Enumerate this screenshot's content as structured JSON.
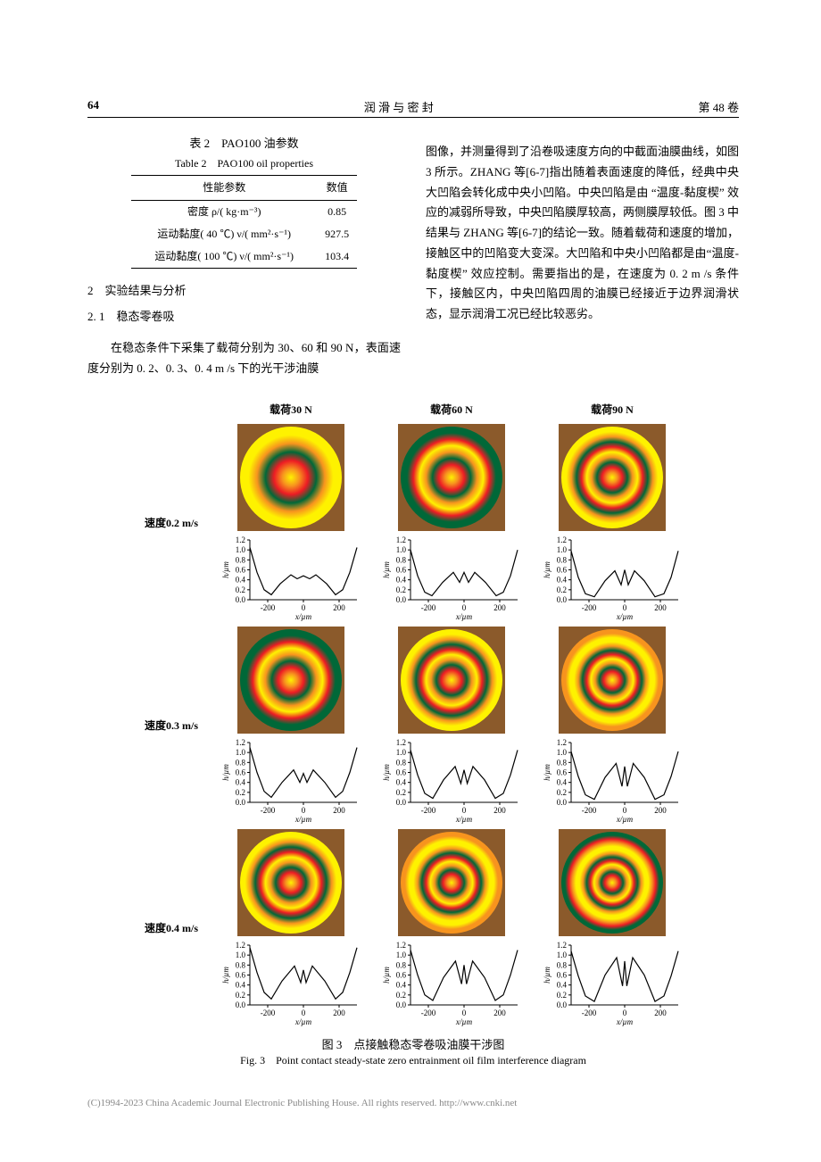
{
  "header": {
    "page_number": "64",
    "journal": "润 滑 与 密 封",
    "volume": "第 48 卷"
  },
  "table2": {
    "caption_cn": "表 2　PAO100 油参数",
    "caption_en": "Table 2　PAO100 oil properties",
    "head_param": "性能参数",
    "head_value": "数值",
    "rows": [
      {
        "param": "密度 ρ/( kg·m⁻³)",
        "value": "0.85"
      },
      {
        "param": "运动黏度( 40 ℃) ν/( mm²·s⁻¹)",
        "value": "927.5"
      },
      {
        "param": "运动黏度( 100 ℃) ν/( mm²·s⁻¹)",
        "value": "103.4"
      }
    ]
  },
  "section2": {
    "title": "2　实验结果与分析",
    "sub1_title": "2. 1　稳态零卷吸",
    "sub1_p1": "在稳态条件下采集了载荷分别为 30、60 和 90 N，表面速度分别为 0. 2、0. 3、0. 4 m /s 下的光干涉油膜图像，并测量得到了沿卷吸速度方向的中截面油膜曲线，如图 3 所示。ZHANG 等[6-7]指出随着表面速度的降低，经典中央大凹陷会转化成中央小凹陷。中央凹陷是由 “温度-黏度楔” 效应的减弱所导致，中央凹陷膜厚较高，两侧膜厚较低。图 3 中结果与 ZHANG 等[6-7]的结论一致。随着载荷和速度的增加，接触区中的凹陷变大变深。大凹陷和中央小凹陷都是由“温度-黏度楔” 效应控制。需要指出的是，在速度为 0. 2 m /s 条件下，接触区内，中央凹陷四周的油膜已经接近于边界润滑状态，显示润滑工况已经比较恶劣。"
  },
  "figure3": {
    "col_heads": [
      "载荷30 N",
      "载荷60 N",
      "载荷90 N"
    ],
    "row_labels": [
      "速度0.2 m/s",
      "速度0.3 m/s",
      "速度0.4 m/s"
    ],
    "ring_colors": {
      "c1": "#FEF200",
      "c2": "#F7941E",
      "c3": "#ED1C24",
      "c4": "#006838",
      "c5": "#662D91",
      "bg": "#8B5A2B"
    },
    "profile": {
      "ylabel": "h/µm",
      "xlabel": "x/µm",
      "ylim": [
        0.0,
        1.2
      ],
      "yticks": [
        "0.0",
        "0.2",
        "0.4",
        "0.6",
        "0.8",
        "1.0",
        "1.2"
      ],
      "xlim": [
        -300,
        300
      ],
      "xticks": [
        "-200",
        "0",
        "200"
      ],
      "line_color": "#000000",
      "line_width": 1.2,
      "tick_fontsize": 9,
      "label_fontsize": 9
    },
    "curves": [
      [
        [
          [
            -300,
            1.05
          ],
          [
            -260,
            0.55
          ],
          [
            -220,
            0.2
          ],
          [
            -180,
            0.1
          ],
          [
            -130,
            0.32
          ],
          [
            -70,
            0.5
          ],
          [
            -35,
            0.42
          ],
          [
            0,
            0.48
          ],
          [
            35,
            0.42
          ],
          [
            70,
            0.5
          ],
          [
            130,
            0.32
          ],
          [
            180,
            0.1
          ],
          [
            220,
            0.2
          ],
          [
            260,
            0.55
          ],
          [
            300,
            1.05
          ]
        ],
        [
          [
            -300,
            1.0
          ],
          [
            -260,
            0.48
          ],
          [
            -220,
            0.15
          ],
          [
            -180,
            0.08
          ],
          [
            -120,
            0.35
          ],
          [
            -60,
            0.55
          ],
          [
            -25,
            0.35
          ],
          [
            0,
            0.55
          ],
          [
            25,
            0.35
          ],
          [
            60,
            0.55
          ],
          [
            120,
            0.35
          ],
          [
            180,
            0.08
          ],
          [
            220,
            0.15
          ],
          [
            260,
            0.48
          ],
          [
            300,
            1.0
          ]
        ],
        [
          [
            -300,
            0.98
          ],
          [
            -260,
            0.45
          ],
          [
            -220,
            0.12
          ],
          [
            -170,
            0.06
          ],
          [
            -110,
            0.38
          ],
          [
            -55,
            0.58
          ],
          [
            -20,
            0.3
          ],
          [
            0,
            0.6
          ],
          [
            20,
            0.3
          ],
          [
            55,
            0.58
          ],
          [
            110,
            0.38
          ],
          [
            170,
            0.06
          ],
          [
            220,
            0.12
          ],
          [
            260,
            0.45
          ],
          [
            300,
            0.98
          ]
        ]
      ],
      [
        [
          [
            -300,
            1.1
          ],
          [
            -260,
            0.6
          ],
          [
            -220,
            0.22
          ],
          [
            -180,
            0.1
          ],
          [
            -120,
            0.4
          ],
          [
            -55,
            0.65
          ],
          [
            -20,
            0.4
          ],
          [
            0,
            0.58
          ],
          [
            20,
            0.4
          ],
          [
            55,
            0.65
          ],
          [
            120,
            0.4
          ],
          [
            180,
            0.1
          ],
          [
            220,
            0.22
          ],
          [
            260,
            0.6
          ],
          [
            300,
            1.1
          ]
        ],
        [
          [
            -300,
            1.05
          ],
          [
            -260,
            0.55
          ],
          [
            -220,
            0.18
          ],
          [
            -175,
            0.08
          ],
          [
            -115,
            0.45
          ],
          [
            -50,
            0.72
          ],
          [
            -18,
            0.38
          ],
          [
            0,
            0.65
          ],
          [
            18,
            0.38
          ],
          [
            50,
            0.72
          ],
          [
            115,
            0.45
          ],
          [
            175,
            0.08
          ],
          [
            220,
            0.18
          ],
          [
            260,
            0.55
          ],
          [
            300,
            1.05
          ]
        ],
        [
          [
            -300,
            1.02
          ],
          [
            -260,
            0.52
          ],
          [
            -220,
            0.15
          ],
          [
            -170,
            0.06
          ],
          [
            -110,
            0.5
          ],
          [
            -48,
            0.78
          ],
          [
            -15,
            0.32
          ],
          [
            0,
            0.72
          ],
          [
            15,
            0.32
          ],
          [
            48,
            0.78
          ],
          [
            110,
            0.5
          ],
          [
            170,
            0.06
          ],
          [
            220,
            0.15
          ],
          [
            260,
            0.52
          ],
          [
            300,
            1.02
          ]
        ]
      ],
      [
        [
          [
            -300,
            1.15
          ],
          [
            -260,
            0.65
          ],
          [
            -220,
            0.25
          ],
          [
            -180,
            0.12
          ],
          [
            -120,
            0.48
          ],
          [
            -50,
            0.78
          ],
          [
            -15,
            0.45
          ],
          [
            0,
            0.7
          ],
          [
            15,
            0.45
          ],
          [
            50,
            0.78
          ],
          [
            120,
            0.48
          ],
          [
            180,
            0.12
          ],
          [
            220,
            0.25
          ],
          [
            260,
            0.65
          ],
          [
            300,
            1.15
          ]
        ],
        [
          [
            -300,
            1.1
          ],
          [
            -260,
            0.6
          ],
          [
            -220,
            0.2
          ],
          [
            -175,
            0.09
          ],
          [
            -115,
            0.55
          ],
          [
            -48,
            0.88
          ],
          [
            -14,
            0.42
          ],
          [
            0,
            0.8
          ],
          [
            14,
            0.42
          ],
          [
            48,
            0.88
          ],
          [
            115,
            0.55
          ],
          [
            175,
            0.09
          ],
          [
            220,
            0.2
          ],
          [
            260,
            0.6
          ],
          [
            300,
            1.1
          ]
        ],
        [
          [
            -300,
            1.08
          ],
          [
            -260,
            0.58
          ],
          [
            -220,
            0.18
          ],
          [
            -170,
            0.07
          ],
          [
            -110,
            0.6
          ],
          [
            -45,
            0.95
          ],
          [
            -12,
            0.38
          ],
          [
            0,
            0.88
          ],
          [
            12,
            0.38
          ],
          [
            45,
            0.95
          ],
          [
            110,
            0.6
          ],
          [
            170,
            0.07
          ],
          [
            220,
            0.18
          ],
          [
            260,
            0.58
          ],
          [
            300,
            1.08
          ]
        ]
      ]
    ],
    "caption_cn": "图 3　点接触稳态零卷吸油膜干涉图",
    "caption_en": "Fig. 3　Point contact steady-state zero entrainment oil film interference diagram"
  },
  "footer": "(C)1994-2023 China Academic Journal Electronic Publishing House. All rights reserved.    http://www.cnki.net"
}
